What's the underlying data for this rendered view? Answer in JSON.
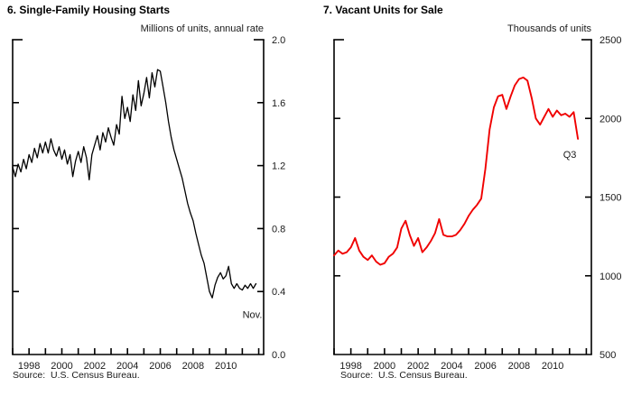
{
  "chart_data": [
    {
      "type": "line",
      "title": "6. Single-Family Housing Starts",
      "unit_label": "Millions of units, annual rate",
      "source": "Source:  U.S. Census Bureau.",
      "end_point_label": "Nov.",
      "line_color": "#000000",
      "ylim": [
        0.0,
        2.0
      ],
      "y_tick_step": 0.4,
      "y_tick_decimals": 1,
      "y_tick_labels": [
        "0.0",
        "0.4",
        "0.8",
        "1.2",
        "1.6",
        "2.0"
      ],
      "xlim": [
        1997,
        2012.3
      ],
      "x_tick_years": [
        1997,
        1998,
        1999,
        2000,
        2001,
        2002,
        2003,
        2004,
        2005,
        2006,
        2007,
        2008,
        2009,
        2010,
        2011,
        2012
      ],
      "x_label_years": [
        1998,
        2000,
        2002,
        2004,
        2006,
        2008,
        2010
      ],
      "x_first": 1997.0,
      "x_step_years": 0.166667,
      "frequency": "monthly (bi-monthly sampled)",
      "values": [
        1.19,
        1.13,
        1.21,
        1.16,
        1.24,
        1.18,
        1.27,
        1.22,
        1.31,
        1.25,
        1.34,
        1.28,
        1.35,
        1.28,
        1.37,
        1.3,
        1.26,
        1.32,
        1.24,
        1.3,
        1.21,
        1.27,
        1.13,
        1.23,
        1.29,
        1.22,
        1.32,
        1.25,
        1.11,
        1.27,
        1.33,
        1.39,
        1.3,
        1.41,
        1.35,
        1.44,
        1.38,
        1.33,
        1.46,
        1.4,
        1.64,
        1.5,
        1.57,
        1.48,
        1.65,
        1.55,
        1.74,
        1.58,
        1.66,
        1.76,
        1.63,
        1.79,
        1.7,
        1.81,
        1.8,
        1.7,
        1.6,
        1.48,
        1.38,
        1.3,
        1.24,
        1.18,
        1.12,
        1.04,
        0.96,
        0.9,
        0.85,
        0.77,
        0.7,
        0.63,
        0.58,
        0.49,
        0.4,
        0.36,
        0.44,
        0.49,
        0.52,
        0.48,
        0.5,
        0.56,
        0.45,
        0.42,
        0.45,
        0.42,
        0.41,
        0.44,
        0.42,
        0.45,
        0.42,
        0.45
      ]
    },
    {
      "type": "line",
      "title": "7. Vacant Units for Sale",
      "unit_label": "Thousands of units",
      "source": "Source:  U.S. Census Bureau.",
      "end_point_label": "Q3",
      "line_color": "#f00000",
      "ylim": [
        500,
        2500
      ],
      "y_tick_step": 500,
      "y_tick_decimals": 0,
      "y_tick_labels": [
        "500",
        "1000",
        "1500",
        "2000",
        "2500"
      ],
      "xlim": [
        1997,
        2012.3
      ],
      "x_tick_years": [
        1997,
        1998,
        1999,
        2000,
        2001,
        2002,
        2003,
        2004,
        2005,
        2006,
        2007,
        2008,
        2009,
        2010,
        2011,
        2012
      ],
      "x_label_years": [
        1998,
        2000,
        2002,
        2004,
        2006,
        2008,
        2010
      ],
      "x_first": 1997.0,
      "x_step_years": 0.25,
      "frequency": "quarterly",
      "values": [
        1130,
        1160,
        1140,
        1150,
        1180,
        1240,
        1160,
        1120,
        1100,
        1130,
        1090,
        1070,
        1080,
        1120,
        1140,
        1180,
        1300,
        1350,
        1260,
        1190,
        1240,
        1150,
        1180,
        1220,
        1270,
        1360,
        1260,
        1250,
        1250,
        1260,
        1290,
        1330,
        1380,
        1420,
        1450,
        1490,
        1680,
        1930,
        2070,
        2140,
        2150,
        2060,
        2140,
        2210,
        2250,
        2260,
        2240,
        2130,
        2000,
        1960,
        2010,
        2060,
        2010,
        2050,
        2020,
        2030,
        2010,
        2040,
        1870
      ]
    }
  ],
  "style": {
    "axis_color": "#000000",
    "label_color": "#1a1a1a",
    "background": "#ffffff"
  }
}
